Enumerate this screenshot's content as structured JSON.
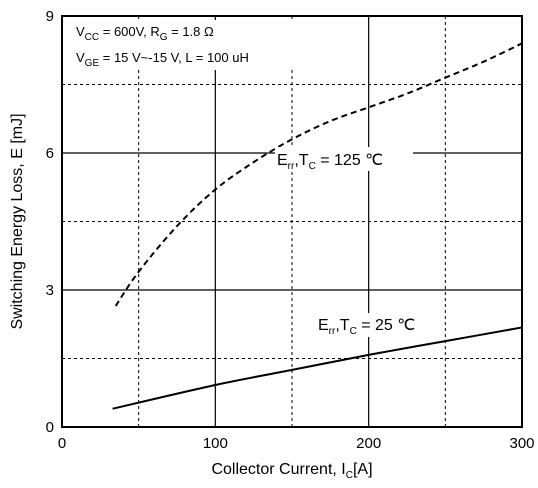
{
  "chart_data": {
    "type": "line",
    "xlabel": {
      "main": "Collector Current, I",
      "sub": "C",
      "tail": "[A]"
    },
    "ylabel": "Switching Energy Loss, E [mJ]",
    "xlim": [
      0,
      300
    ],
    "ylim": [
      0,
      9
    ],
    "xticks": [
      "0",
      "100",
      "200",
      "300"
    ],
    "yticks": [
      "0",
      "3",
      "6",
      "9"
    ],
    "x_minor_grid": [
      50,
      150,
      250
    ],
    "y_minor_grid": [
      1.5,
      4.5,
      7.5
    ],
    "grid": true,
    "conditions": [
      [
        {
          "t": "V"
        },
        {
          "t": "CC",
          "sub": true
        },
        {
          "t": " = 600V, R"
        },
        {
          "t": "G",
          "sub": true
        },
        {
          "t": " = 1.8 Ω"
        }
      ],
      [
        {
          "t": "V"
        },
        {
          "t": "GE",
          "sub": true
        },
        {
          "t": " = 15 V~-15 V, L = 100 uH"
        }
      ]
    ],
    "series": [
      {
        "name": "E_rr, T_C = 125 ℃",
        "style": "dashed",
        "color": "#000000",
        "label": [
          {
            "t": "E"
          },
          {
            "t": "rr",
            "sub": true
          },
          {
            "t": ",T"
          },
          {
            "t": "C",
            "sub": true
          },
          {
            "t": " = 125 ℃"
          }
        ],
        "x": [
          35,
          50,
          75,
          100,
          125,
          150,
          175,
          200,
          225,
          250,
          275,
          300
        ],
        "y": [
          2.65,
          3.4,
          4.4,
          5.2,
          5.8,
          6.3,
          6.7,
          7.0,
          7.3,
          7.65,
          8.0,
          8.4
        ]
      },
      {
        "name": "E_rr, T_C = 25 ℃",
        "style": "solid",
        "color": "#000000",
        "label": [
          {
            "t": "E"
          },
          {
            "t": "rr",
            "sub": true
          },
          {
            "t": ",T"
          },
          {
            "t": "C",
            "sub": true
          },
          {
            "t": " = 25 ℃"
          }
        ],
        "x": [
          33,
          100,
          150,
          200,
          250,
          300
        ],
        "y": [
          0.4,
          0.92,
          1.25,
          1.58,
          1.88,
          2.18
        ]
      }
    ]
  }
}
